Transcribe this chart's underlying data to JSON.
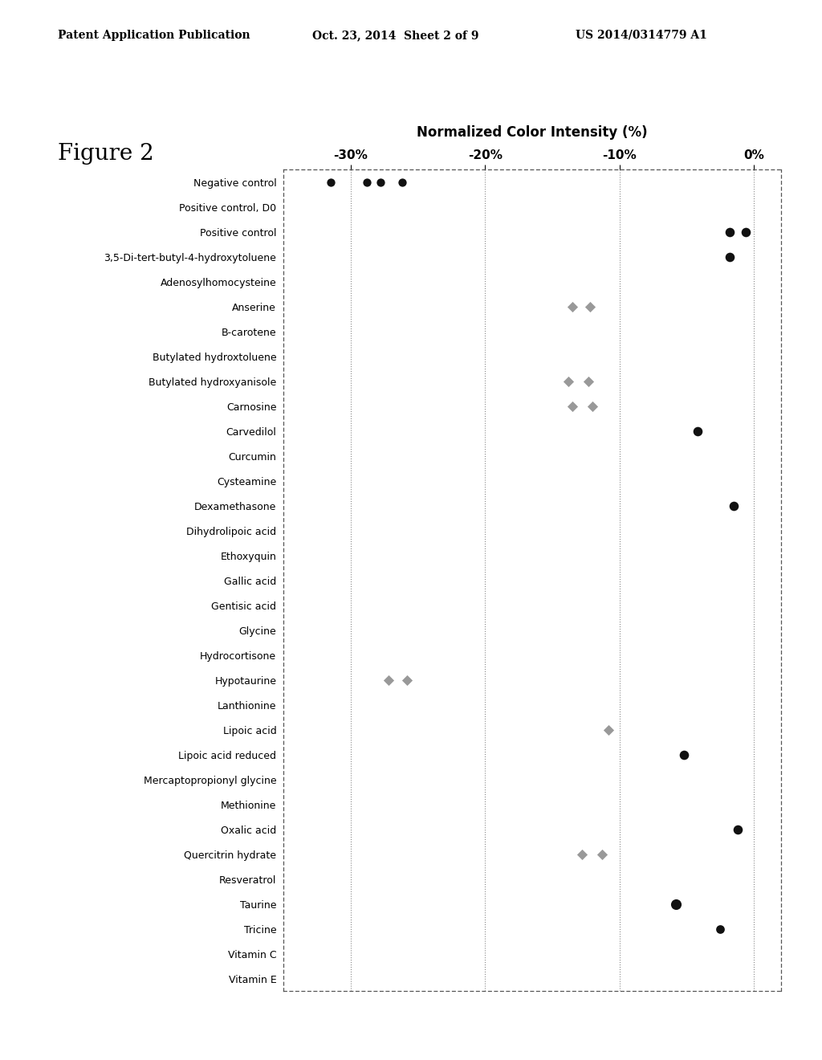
{
  "header_left": "Patent Application Publication",
  "header_center": "Oct. 23, 2014  Sheet 2 of 9",
  "header_right": "US 2014/0314779 A1",
  "figure_label": "Figure 2",
  "chart_title": "Normalized Color Intensity (%)",
  "xlim": [
    -35,
    2
  ],
  "xticks": [
    -30,
    -20,
    -10,
    0
  ],
  "xticklabels": [
    "-30%",
    "-20%",
    "-10%",
    "0%"
  ],
  "categories": [
    "Negative control",
    "Positive control, D0",
    "Positive control",
    "3,5-Di-tert-butyl-4-hydroxytoluene",
    "Adenosylhomocysteine",
    "Anserine",
    "B-carotene",
    "Butylated hydroxtoluene",
    "Butylated hydroxyanisole",
    "Carnosine",
    "Carvedilol",
    "Curcumin",
    "Cysteamine",
    "Dexamethasone",
    "Dihydrolipoic acid",
    "Ethoxyquin",
    "Gallic acid",
    "Gentisic acid",
    "Glycine",
    "Hydrocortisone",
    "Hypotaurine",
    "Lanthionine",
    "Lipoic acid",
    "Lipoic acid reduced",
    "Mercaptopropionyl glycine",
    "Methionine",
    "Oxalic acid",
    "Quercitrin hydrate",
    "Resveratrol",
    "Taurine",
    "Tricine",
    "Vitamin C",
    "Vitamin E"
  ],
  "data_points": [
    {
      "category": "Negative control",
      "x": -31.5,
      "marker": "o",
      "color": "#111111",
      "size": 55
    },
    {
      "category": "Negative control",
      "x": -28.8,
      "marker": "o",
      "color": "#111111",
      "size": 55
    },
    {
      "category": "Negative control",
      "x": -27.8,
      "marker": "o",
      "color": "#111111",
      "size": 55
    },
    {
      "category": "Negative control",
      "x": -26.2,
      "marker": "o",
      "color": "#111111",
      "size": 55
    },
    {
      "category": "Positive control",
      "x": -1.8,
      "marker": "o",
      "color": "#111111",
      "size": 70
    },
    {
      "category": "Positive control",
      "x": -0.6,
      "marker": "o",
      "color": "#111111",
      "size": 70
    },
    {
      "category": "3,5-Di-tert-butyl-4-hydroxytoluene",
      "x": -1.8,
      "marker": "o",
      "color": "#111111",
      "size": 70
    },
    {
      "category": "Anserine",
      "x": -13.5,
      "marker": "D",
      "color": "#999999",
      "size": 45
    },
    {
      "category": "Anserine",
      "x": -12.2,
      "marker": "D",
      "color": "#999999",
      "size": 45
    },
    {
      "category": "Butylated hydroxyanisole",
      "x": -13.8,
      "marker": "D",
      "color": "#999999",
      "size": 45
    },
    {
      "category": "Butylated hydroxyanisole",
      "x": -12.3,
      "marker": "D",
      "color": "#999999",
      "size": 45
    },
    {
      "category": "Carnosine",
      "x": -13.5,
      "marker": "D",
      "color": "#999999",
      "size": 45
    },
    {
      "category": "Carnosine",
      "x": -12.0,
      "marker": "D",
      "color": "#999999",
      "size": 45
    },
    {
      "category": "Carvedilol",
      "x": -4.2,
      "marker": "o",
      "color": "#111111",
      "size": 70
    },
    {
      "category": "Dexamethasone",
      "x": -1.5,
      "marker": "o",
      "color": "#111111",
      "size": 70
    },
    {
      "category": "Hypotaurine",
      "x": -27.2,
      "marker": "D",
      "color": "#999999",
      "size": 45
    },
    {
      "category": "Hypotaurine",
      "x": -25.8,
      "marker": "D",
      "color": "#999999",
      "size": 45
    },
    {
      "category": "Lipoic acid",
      "x": -10.8,
      "marker": "D",
      "color": "#999999",
      "size": 45
    },
    {
      "category": "Lipoic acid reduced",
      "x": -5.2,
      "marker": "o",
      "color": "#111111",
      "size": 70
    },
    {
      "category": "Oxalic acid",
      "x": -1.2,
      "marker": "o",
      "color": "#111111",
      "size": 70
    },
    {
      "category": "Quercitrin hydrate",
      "x": -12.8,
      "marker": "D",
      "color": "#999999",
      "size": 45
    },
    {
      "category": "Quercitrin hydrate",
      "x": -11.3,
      "marker": "D",
      "color": "#999999",
      "size": 45
    },
    {
      "category": "Taurine",
      "x": -5.8,
      "marker": "o",
      "color": "#111111",
      "size": 90
    },
    {
      "category": "Tricine",
      "x": -2.5,
      "marker": "o",
      "color": "#111111",
      "size": 60
    }
  ],
  "background_color": "#ffffff",
  "plot_bg_color": "#ffffff",
  "font_size_header": 10,
  "font_size_title": 12,
  "font_size_figure_label": 20,
  "font_size_tick_x": 11,
  "font_size_tick_y": 9
}
